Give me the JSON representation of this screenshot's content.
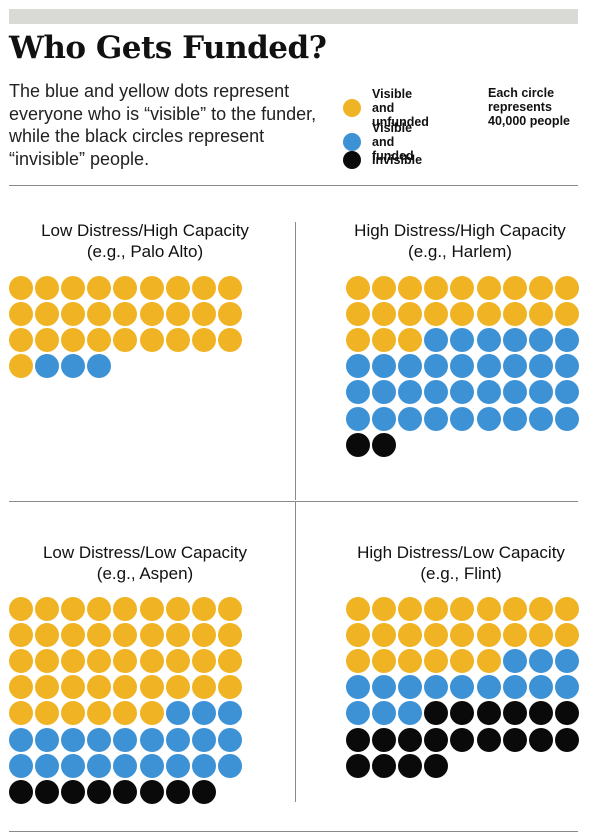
{
  "title": "Who Gets Funded?",
  "description": "The blue and yellow dots represent everyone who is “visible” to the funder, while the black circles represent “invisible” people.",
  "legend": {
    "items": [
      {
        "label": "Visible and\nunfunded",
        "color": "#f0b323"
      },
      {
        "label": "Visible and\nfunded",
        "color": "#3d92d6"
      },
      {
        "label": "Invisible",
        "color": "#0a0a0a"
      }
    ],
    "note": "Each circle\nrepresents\n40,000 people"
  },
  "chart_data": [
    {
      "type": "waffle",
      "title": "Low Distress/High Capacity\n(e.g., Palo Alto)",
      "columns": 9,
      "series": [
        {
          "name": "Visible and unfunded",
          "value": 28,
          "color": "#f0b323"
        },
        {
          "name": "Visible and funded",
          "value": 3,
          "color": "#3d92d6"
        },
        {
          "name": "Invisible",
          "value": 0,
          "color": "#0a0a0a"
        }
      ]
    },
    {
      "type": "waffle",
      "title": "High Distress/High Capacity\n(e.g., Harlem)",
      "columns": 9,
      "series": [
        {
          "name": "Visible and unfunded",
          "value": 21,
          "color": "#f0b323"
        },
        {
          "name": "Visible and funded",
          "value": 33,
          "color": "#3d92d6"
        },
        {
          "name": "Invisible",
          "value": 2,
          "color": "#0a0a0a"
        }
      ]
    },
    {
      "type": "waffle",
      "title": "Low Distress/Low Capacity\n(e.g., Aspen)",
      "columns": 9,
      "series": [
        {
          "name": "Visible and unfunded",
          "value": 42,
          "color": "#f0b323"
        },
        {
          "name": "Visible and funded",
          "value": 21,
          "color": "#3d92d6"
        },
        {
          "name": "Invisible",
          "value": 8,
          "color": "#0a0a0a"
        }
      ]
    },
    {
      "type": "waffle",
      "title": "High Distress/Low Capacity\n(e.g., Flint)",
      "columns": 9,
      "series": [
        {
          "name": "Visible and unfunded",
          "value": 24,
          "color": "#f0b323"
        },
        {
          "name": "Visible and funded",
          "value": 15,
          "color": "#3d92d6"
        },
        {
          "name": "Invisible",
          "value": 19,
          "color": "#0a0a0a"
        }
      ]
    }
  ]
}
